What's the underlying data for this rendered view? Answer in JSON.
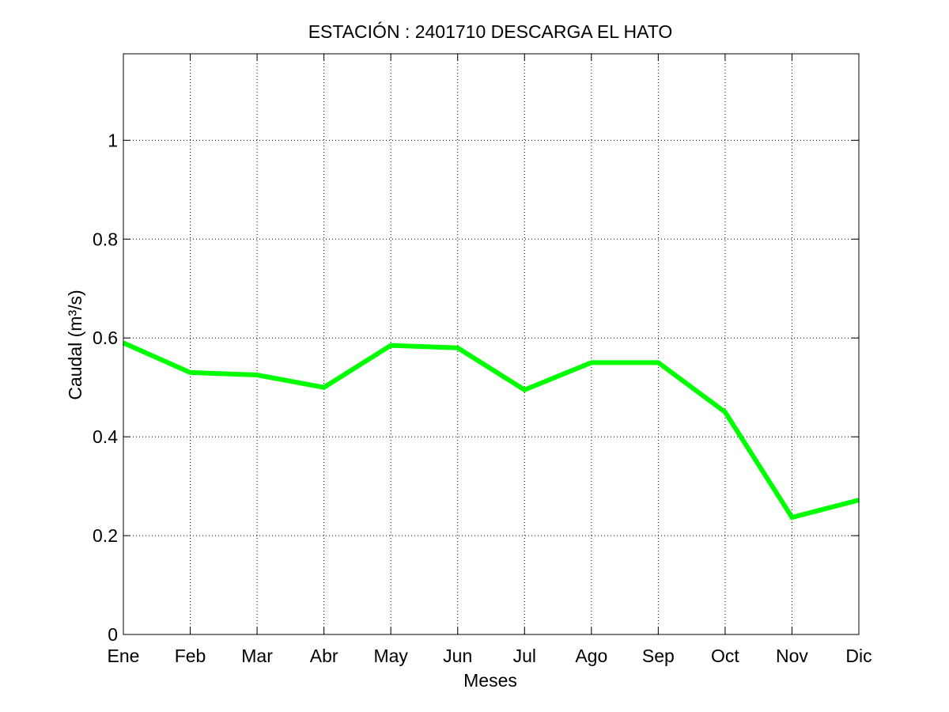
{
  "chart_data": {
    "type": "line",
    "title": "ESTACIÓN :  2401710  DESCARGA EL HATO",
    "xlabel": "Meses",
    "ylabel": "Caudal (m³/s)",
    "categories": [
      "Ene",
      "Feb",
      "Mar",
      "Abr",
      "May",
      "Jun",
      "Jul",
      "Ago",
      "Sep",
      "Oct",
      "Nov",
      "Dic"
    ],
    "ylim": [
      0,
      1.175
    ],
    "yticks": [
      "0",
      "0.2",
      "0.4",
      "0.6",
      "0.8",
      "1"
    ],
    "grid": true,
    "series": [
      {
        "values": [
          0.59,
          0.53,
          0.525,
          0.5,
          0.585,
          0.58,
          0.495,
          0.55,
          0.55,
          0.45,
          0.237,
          0.272
        ],
        "color": "#00ff00"
      }
    ]
  }
}
